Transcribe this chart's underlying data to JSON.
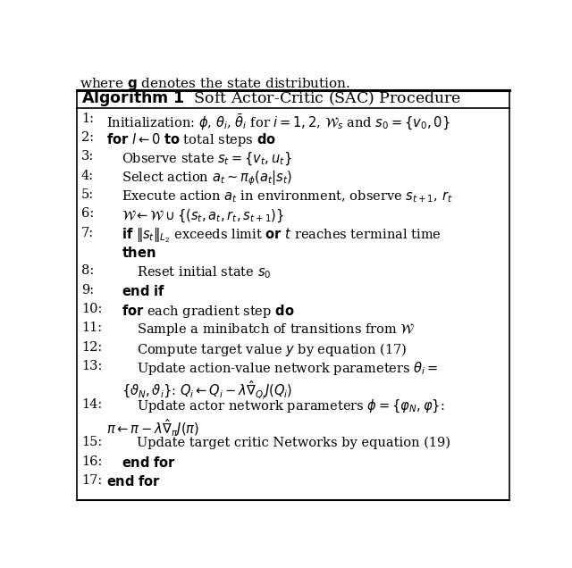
{
  "background_color": "#ffffff",
  "header_text": "where $\\mathbf{g}$ denotes the state distribution.",
  "title_bold": "Algorithm 1",
  "title_regular": " Soft Actor-Critic (SAC) Procedure",
  "lines": [
    {
      "num": "1:",
      "indent": 0,
      "text": "Initialization: $\\phi$, $\\theta_i$, $\\bar{\\theta}_i$ for $i=1,2$, $\\mathcal{W}_s$ and $s_0=\\{v_0,0\\}$"
    },
    {
      "num": "2:",
      "indent": 0,
      "text": "$\\mathbf{for}$ $l \\leftarrow 0$ $\\mathbf{to}$ total steps $\\mathbf{do}$"
    },
    {
      "num": "3:",
      "indent": 1,
      "text": "Observe state $s_t = \\{v_t, u_t\\}$"
    },
    {
      "num": "4:",
      "indent": 1,
      "text": "Select action $a_t \\sim \\pi_\\phi(a_t|s_t)$"
    },
    {
      "num": "5:",
      "indent": 1,
      "text": "Execute action $a_t$ in environment, observe $s_{t+1}$, $r_t$"
    },
    {
      "num": "6:",
      "indent": 1,
      "text": "$\\mathcal{W} \\leftarrow \\mathcal{W} \\cup \\{(s_t, a_t, r_t, s_{t+1})\\}$"
    },
    {
      "num": "7:",
      "indent": 1,
      "text": "$\\mathbf{if}$ $\\|s_t\\|_{L_2}$ exceeds limit $\\mathbf{or}$ $t$ reaches terminal time"
    },
    {
      "num": "",
      "indent": 1,
      "text": "$\\mathbf{then}$"
    },
    {
      "num": "8:",
      "indent": 2,
      "text": "Reset initial state $s_0$"
    },
    {
      "num": "9:",
      "indent": 1,
      "text": "$\\mathbf{end\\ if}$"
    },
    {
      "num": "10:",
      "indent": 1,
      "text": "$\\mathbf{for}$ each gradient step $\\mathbf{do}$"
    },
    {
      "num": "11:",
      "indent": 2,
      "text": "Sample a minibatch of transitions from $\\mathcal{W}$"
    },
    {
      "num": "12:",
      "indent": 2,
      "text": "Compute target value $y$ by equation (17)"
    },
    {
      "num": "13:",
      "indent": 2,
      "text": "Update action-value network parameters $\\theta_i =$"
    },
    {
      "num": "",
      "indent": 1,
      "text": "$\\{\\vartheta_N, \\vartheta_i\\}$: $Q_i \\leftarrow Q_i - \\lambda\\hat{\\nabla}_{Q_i}J(Q_i)$"
    },
    {
      "num": "14:",
      "indent": 2,
      "text": "Update actor network parameters $\\phi = \\{\\varphi_N, \\varphi\\}$:"
    },
    {
      "num": "",
      "indent": 0,
      "text": "$\\pi \\leftarrow \\pi - \\lambda\\hat{\\nabla}_\\pi J(\\pi)$"
    },
    {
      "num": "15:",
      "indent": 2,
      "text": "Update target critic Networks by equation (19)"
    },
    {
      "num": "16:",
      "indent": 1,
      "text": "$\\mathbf{end\\ for}$"
    },
    {
      "num": "17:",
      "indent": 0,
      "text": "$\\mathbf{end\\ for}$"
    }
  ]
}
